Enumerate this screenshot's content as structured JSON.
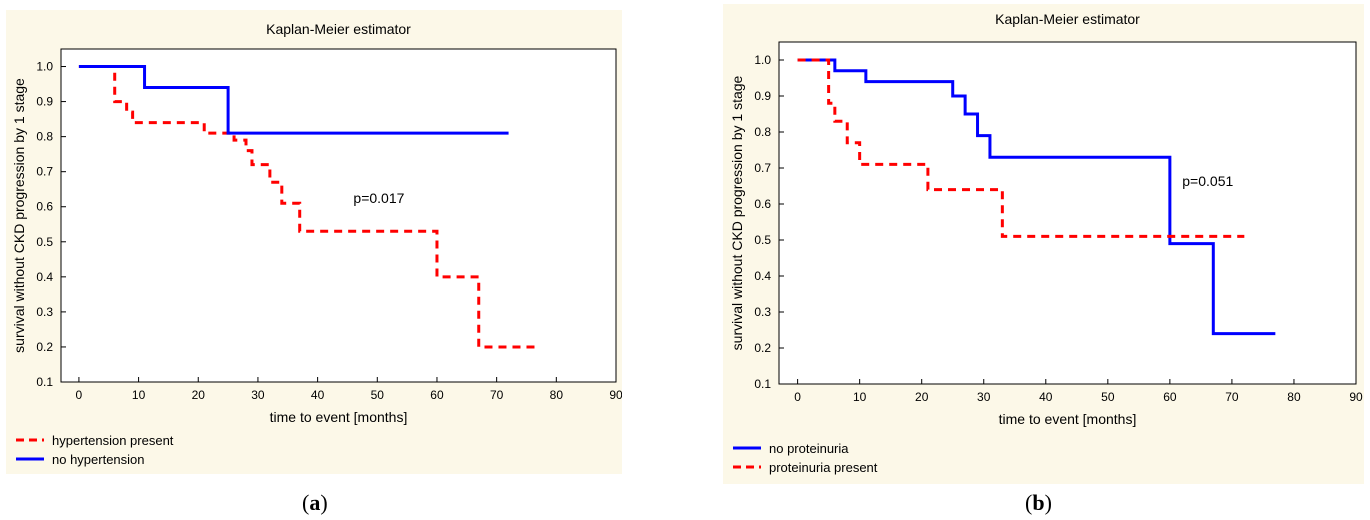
{
  "captions": {
    "a_open": "(",
    "a_letter": "a",
    "a_close": ")",
    "b_open": "(",
    "b_letter": "b",
    "b_close": ")"
  },
  "chart_data": [
    {
      "type": "line",
      "title": "Kaplan-Meier estimator",
      "xlabel": "time to event [months]",
      "ylabel": "survival without CKD progression by 1 stage",
      "xlim": [
        -3,
        90
      ],
      "ylim": [
        0.1,
        1.05
      ],
      "xticks": [
        0,
        10,
        20,
        30,
        40,
        50,
        60,
        70,
        80,
        90
      ],
      "yticks": [
        0.1,
        0.2,
        0.3,
        0.4,
        0.5,
        0.6,
        0.7,
        0.8,
        0.9,
        1.0
      ],
      "grid": false,
      "legend_position": "bottom-left",
      "annotation": "p=0.017",
      "series": [
        {
          "name": "hypertension present",
          "color": "#ff0000",
          "style": "dashed",
          "step": true,
          "x": [
            0,
            5,
            6,
            8,
            9,
            21,
            26,
            28,
            29,
            32,
            34,
            37,
            60,
            67,
            77
          ],
          "y": [
            1.0,
            1.0,
            0.9,
            0.87,
            0.84,
            0.81,
            0.79,
            0.76,
            0.72,
            0.67,
            0.61,
            0.53,
            0.4,
            0.2,
            0.2
          ]
        },
        {
          "name": "no hypertension",
          "color": "#0000ff",
          "style": "solid",
          "step": true,
          "x": [
            0,
            11,
            25,
            72
          ],
          "y": [
            1.0,
            0.94,
            0.81,
            0.81
          ]
        }
      ]
    },
    {
      "type": "line",
      "title": "Kaplan-Meier estimator",
      "xlabel": "time to event [months]",
      "ylabel": "survival without CKD progression by 1 stage",
      "xlim": [
        -3,
        90
      ],
      "ylim": [
        0.1,
        1.05
      ],
      "xticks": [
        0,
        10,
        20,
        30,
        40,
        50,
        60,
        70,
        80,
        90
      ],
      "yticks": [
        0.1,
        0.2,
        0.3,
        0.4,
        0.5,
        0.6,
        0.7,
        0.8,
        0.9,
        1.0
      ],
      "grid": false,
      "legend_position": "bottom-left",
      "annotation": "p=0.051",
      "series": [
        {
          "name": "no proteinuria",
          "color": "#0000ff",
          "style": "solid",
          "step": true,
          "x": [
            0,
            6,
            11,
            25,
            27,
            28,
            29,
            31,
            60,
            67,
            77
          ],
          "y": [
            1.0,
            0.97,
            0.94,
            0.9,
            0.85,
            0.85,
            0.79,
            0.73,
            0.49,
            0.24,
            0.24
          ]
        },
        {
          "name": "proteinuria present",
          "color": "#ff0000",
          "style": "dashed",
          "step": true,
          "x": [
            0,
            5,
            6,
            8,
            9,
            10,
            21,
            33,
            72
          ],
          "y": [
            1.0,
            0.88,
            0.83,
            0.77,
            0.77,
            0.71,
            0.64,
            0.51,
            0.51
          ]
        }
      ]
    }
  ]
}
